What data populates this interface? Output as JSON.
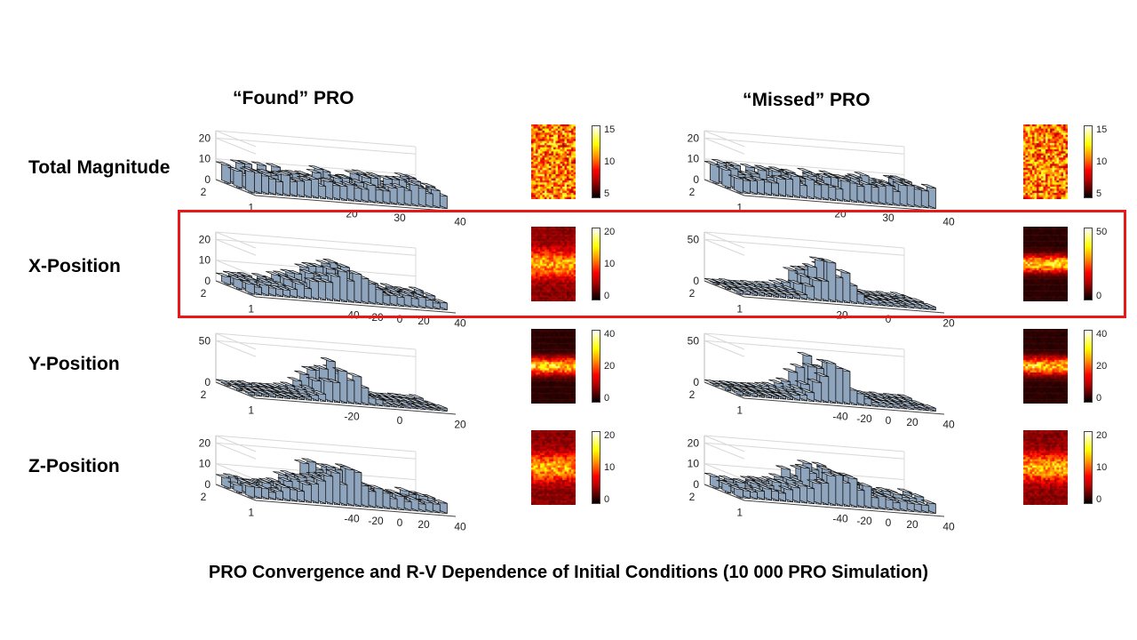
{
  "columns": {
    "left": "“Found” PRO",
    "right": "“Missed”  PRO"
  },
  "rows": [
    "Total Magnitude",
    "X-Position",
    "Y-Position",
    "Z-Position"
  ],
  "caption": "PRO Convergence and R-V Dependence of Initial Conditions (10 000 PRO Simulation)",
  "highlight_color": "#e81818",
  "colormap": "hot",
  "chart_data": [
    {
      "type": "bar3d",
      "panel": "found-total-magnitude",
      "zticks": [
        "0",
        "10",
        "20"
      ],
      "zlim": [
        0,
        20
      ],
      "yticks": [
        "2",
        "1"
      ],
      "xticks": [
        "20",
        "30",
        "40"
      ],
      "profile": "uniform",
      "level": 0.5,
      "colorbar": [
        "15",
        "10",
        "5"
      ],
      "colorbar_range": [
        1,
        16
      ]
    },
    {
      "type": "bar3d",
      "panel": "missed-total-magnitude",
      "zticks": [
        "0",
        "10",
        "20"
      ],
      "zlim": [
        0,
        20
      ],
      "yticks": [
        "2",
        "1"
      ],
      "xticks": [
        "20",
        "30",
        "40"
      ],
      "profile": "uniform",
      "level": 0.5,
      "colorbar": [
        "15",
        "10",
        "5"
      ],
      "colorbar_range": [
        1,
        18
      ]
    },
    {
      "type": "bar3d",
      "panel": "found-x-position",
      "zticks": [
        "0",
        "10",
        "20"
      ],
      "zlim": [
        0,
        25
      ],
      "yticks": [
        "2",
        "1"
      ],
      "xticks": [
        "-40",
        "-20",
        "0",
        "20",
        "40"
      ],
      "profile": "peak",
      "level": 0.55,
      "colorbar": [
        "20",
        "10",
        "0"
      ],
      "colorbar_range": [
        0,
        24
      ]
    },
    {
      "type": "bar3d",
      "panel": "missed-x-position",
      "zticks": [
        "0",
        "50"
      ],
      "zlim": [
        0,
        60
      ],
      "yticks": [
        "2",
        "1"
      ],
      "xticks": [
        "-20",
        "0",
        "20"
      ],
      "profile": "sharp",
      "level": 0.6,
      "colorbar": [
        "50",
        "0"
      ],
      "colorbar_range": [
        0,
        58
      ]
    },
    {
      "type": "bar3d",
      "panel": "found-y-position",
      "zticks": [
        "0",
        "50"
      ],
      "zlim": [
        0,
        60
      ],
      "yticks": [
        "2",
        "1"
      ],
      "xticks": [
        "-20",
        "0",
        "20"
      ],
      "profile": "sharp",
      "level": 0.55,
      "colorbar": [
        "40",
        "20",
        "0"
      ],
      "colorbar_range": [
        0,
        42
      ]
    },
    {
      "type": "bar3d",
      "panel": "missed-y-position",
      "zticks": [
        "0",
        "50"
      ],
      "zlim": [
        0,
        60
      ],
      "yticks": [
        "2",
        "1"
      ],
      "xticks": [
        "-40",
        "-20",
        "0",
        "20",
        "40"
      ],
      "profile": "sharp",
      "level": 0.6,
      "colorbar": [
        "40",
        "20",
        "0"
      ],
      "colorbar_range": [
        0,
        47
      ]
    },
    {
      "type": "bar3d",
      "panel": "found-z-position",
      "zticks": [
        "0",
        "10",
        "20"
      ],
      "zlim": [
        0,
        22
      ],
      "yticks": [
        "2",
        "1"
      ],
      "xticks": [
        "-40",
        "-20",
        "0",
        "20",
        "40"
      ],
      "profile": "peak",
      "level": 0.6,
      "colorbar": [
        "20",
        "10",
        "0"
      ],
      "colorbar_range": [
        0,
        21
      ]
    },
    {
      "type": "bar3d",
      "panel": "missed-z-position",
      "zticks": [
        "0",
        "10",
        "20"
      ],
      "zlim": [
        0,
        24
      ],
      "yticks": [
        "2",
        "1"
      ],
      "xticks": [
        "-40",
        "-20",
        "0",
        "20",
        "40"
      ],
      "profile": "peak",
      "level": 0.6,
      "colorbar": [
        "20",
        "10",
        "0"
      ],
      "colorbar_range": [
        0,
        23
      ]
    }
  ]
}
